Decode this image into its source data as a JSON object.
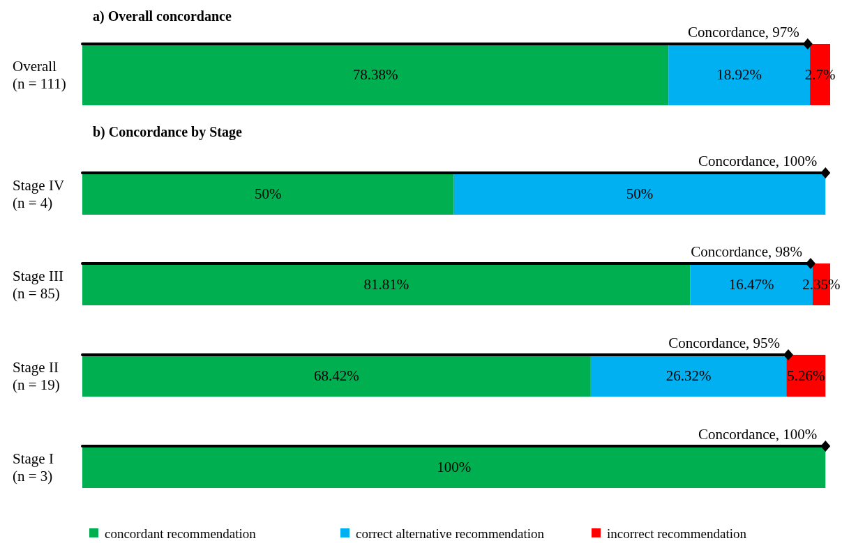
{
  "chart_data": [
    {
      "type": "bar",
      "orientation": "horizontal",
      "stacked": true,
      "title": "a) Overall concordance",
      "categories": [
        "Overall\n(n = 111)"
      ],
      "series": [
        {
          "color": "#00b050",
          "values": [
            78.38
          ],
          "value_labels": [
            "78.38%"
          ]
        },
        {
          "color": "#00b0f0",
          "values": [
            18.92
          ],
          "value_labels": [
            "18.92%"
          ]
        },
        {
          "color": "#ff0000",
          "values": [
            2.7
          ],
          "value_labels": [
            "2.7%"
          ]
        },
        {
          "type": "lollipop",
          "color": "#000000",
          "marker": "diamond",
          "values": [
            97
          ],
          "value_labels": [
            "Concordance, 97%"
          ]
        }
      ],
      "legend": false
    },
    {
      "type": "bar",
      "orientation": "horizontal",
      "stacked": true,
      "title": "b) Concordance by Stage",
      "categories": [
        "Stage IV\n(n = 4)",
        "Stage III\n(n = 85)",
        "Stage II\n(n = 19)",
        "Stage I\n(n = 3)"
      ],
      "series": [
        {
          "name": "concordant recommendation",
          "color": "#00b050",
          "values": [
            50,
            81.81,
            68.42,
            100
          ],
          "value_labels": [
            "50%",
            "81.81%",
            "68.42%",
            "100%"
          ]
        },
        {
          "name": "correct alternative recommendation",
          "color": "#00b0f0",
          "values": [
            50,
            16.47,
            26.32,
            null
          ],
          "value_labels": [
            "50%",
            "16.47%",
            "26.32%",
            null
          ]
        },
        {
          "name": "incorrect recommendation",
          "color": "#ff0000",
          "values": [
            null,
            2.35,
            5.26,
            null
          ],
          "value_labels": [
            null,
            "2.35%",
            "5.26%",
            null
          ]
        },
        {
          "type": "lollipop",
          "color": "#000000",
          "marker": "diamond",
          "values": [
            100,
            98,
            95,
            100
          ],
          "value_labels": [
            "Concordance, 100%",
            "Concordance, 98%",
            "Concordance, 95%",
            "Concordance, 100%"
          ]
        }
      ],
      "legend": "bottom"
    }
  ]
}
